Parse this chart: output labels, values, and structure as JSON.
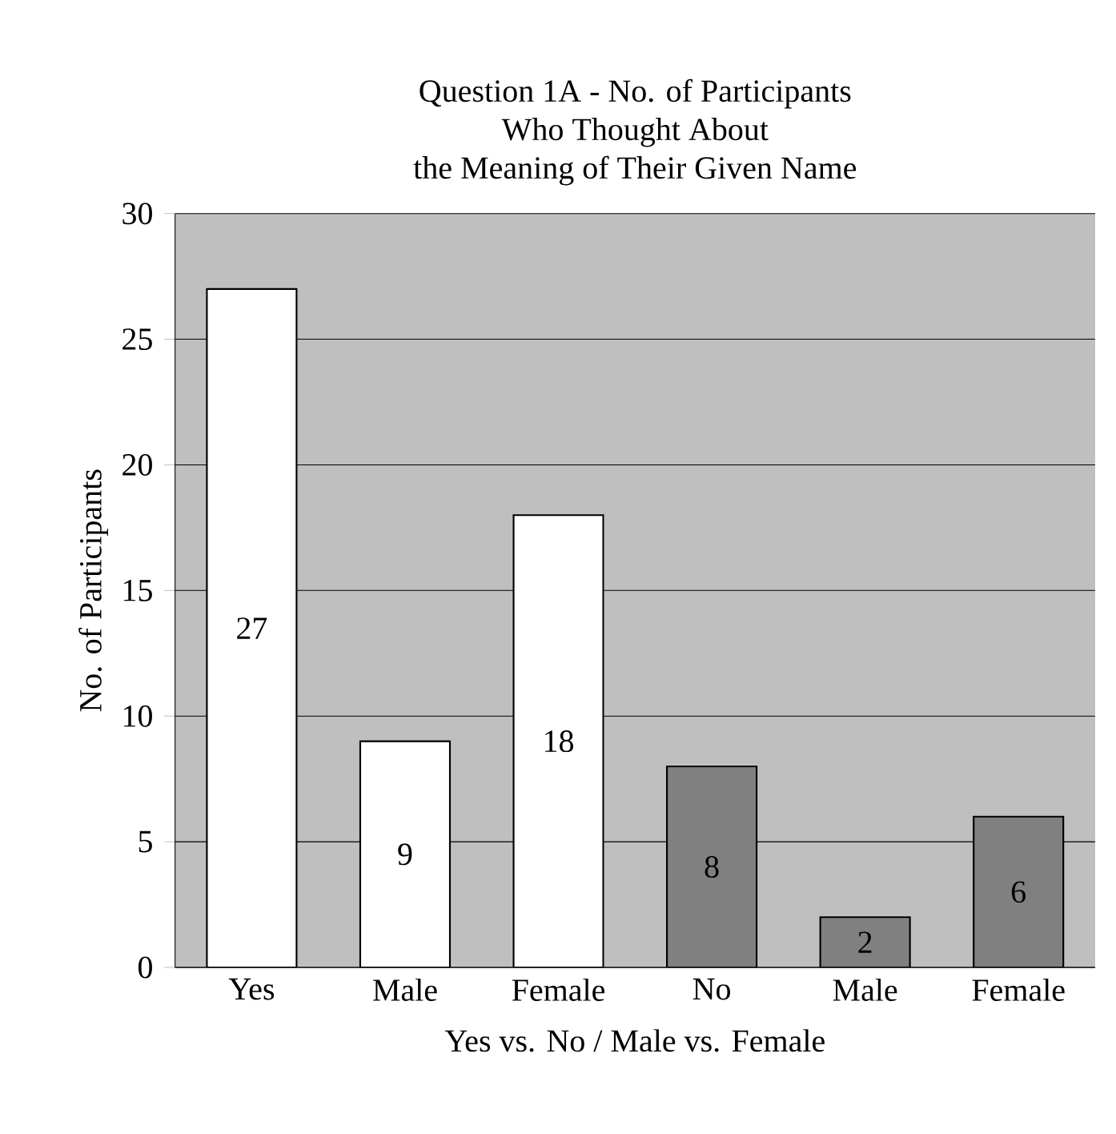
{
  "chart_data": {
    "type": "bar",
    "title": "Question 1A  - No. of Participants\nWho Thought About\nthe Meaning of Their Given Name",
    "xlabel": "Yes vs. No / Male vs. Female",
    "ylabel": "No. of Participants",
    "categories": [
      "Yes",
      "Male",
      "Female",
      "No",
      "Male",
      "Female"
    ],
    "values": [
      27,
      9,
      18,
      8,
      2,
      6
    ],
    "colors": [
      "#ffffff",
      "#ffffff",
      "#ffffff",
      "#808080",
      "#808080",
      "#808080"
    ],
    "ylim": [
      0,
      30
    ],
    "yticks": [
      0,
      5,
      10,
      15,
      20,
      25,
      30
    ],
    "grid": "y",
    "data_labels": true
  }
}
